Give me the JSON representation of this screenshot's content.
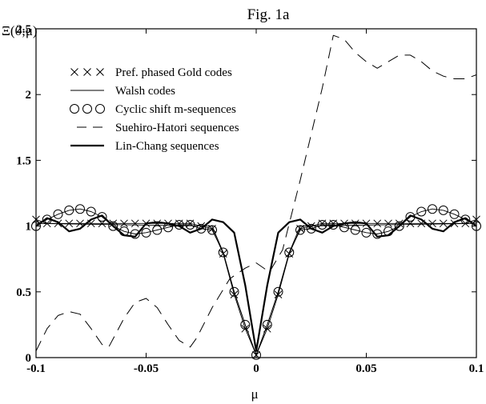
{
  "chart_data": {
    "type": "line",
    "title": "Fig. 1a",
    "xlabel": "μ",
    "ylabel": "Ξ(0;μ)",
    "xlim": [
      -0.1,
      0.1
    ],
    "ylim": [
      0,
      2.5
    ],
    "x_ticks": [
      -0.1,
      -0.05,
      0,
      0.05,
      0.1
    ],
    "x_tick_labels": [
      "-0.1",
      "-0.05",
      "0",
      "0.05",
      "0.1"
    ],
    "y_ticks": [
      0,
      0.5,
      1,
      1.5,
      2,
      2.5
    ],
    "y_tick_labels": [
      "0",
      "0.5",
      "1",
      "1.5",
      "2",
      "2.5"
    ],
    "grid": false,
    "legend_position": "top-left",
    "series": [
      {
        "name": "Pref. phased Gold codes",
        "style": "x-marker-thin-line",
        "x": [
          -0.1,
          -0.095,
          -0.09,
          -0.085,
          -0.08,
          -0.075,
          -0.07,
          -0.065,
          -0.06,
          -0.055,
          -0.05,
          -0.045,
          -0.04,
          -0.035,
          -0.03,
          -0.025,
          -0.02,
          -0.015,
          -0.01,
          -0.005,
          0,
          0.005,
          0.01,
          0.015,
          0.02,
          0.025,
          0.03,
          0.035,
          0.04,
          0.045,
          0.05,
          0.055,
          0.06,
          0.065,
          0.07,
          0.075,
          0.08,
          0.085,
          0.09,
          0.095,
          0.1
        ],
        "y": [
          1.05,
          1.02,
          1.02,
          1.02,
          1.02,
          1.02,
          1.02,
          1.02,
          1.02,
          1.02,
          1.02,
          1.02,
          1.02,
          1.02,
          1.02,
          1.0,
          0.98,
          0.79,
          0.48,
          0.22,
          0.02,
          0.22,
          0.48,
          0.79,
          0.98,
          1.0,
          1.02,
          1.02,
          1.02,
          1.02,
          1.02,
          1.02,
          1.02,
          1.02,
          1.02,
          1.02,
          1.02,
          1.02,
          1.02,
          1.02,
          1.05
        ]
      },
      {
        "name": "Walsh codes",
        "style": "thin-line",
        "x": [
          -0.1,
          -0.02,
          -0.015,
          -0.01,
          -0.005,
          0,
          0.005,
          0.01,
          0.015,
          0.02,
          0.1
        ],
        "y": [
          1.02,
          1.0,
          0.8,
          0.5,
          0.25,
          0.02,
          0.25,
          0.5,
          0.8,
          1.0,
          1.02
        ]
      },
      {
        "name": "Cyclic shift m-sequences",
        "style": "circle-marker-thin-line",
        "x": [
          -0.1,
          -0.095,
          -0.09,
          -0.085,
          -0.08,
          -0.075,
          -0.07,
          -0.065,
          -0.06,
          -0.055,
          -0.05,
          -0.045,
          -0.04,
          -0.035,
          -0.03,
          -0.025,
          -0.02,
          -0.015,
          -0.01,
          -0.005,
          0,
          0.005,
          0.01,
          0.015,
          0.02,
          0.025,
          0.03,
          0.035,
          0.04,
          0.045,
          0.05,
          0.055,
          0.06,
          0.065,
          0.07,
          0.075,
          0.08,
          0.085,
          0.09,
          0.095,
          0.1
        ],
        "y": [
          1.0,
          1.05,
          1.09,
          1.12,
          1.13,
          1.11,
          1.07,
          1.0,
          0.96,
          0.94,
          0.95,
          0.97,
          0.99,
          1.01,
          1.01,
          0.98,
          0.97,
          0.8,
          0.5,
          0.25,
          0.02,
          0.25,
          0.5,
          0.8,
          0.97,
          0.98,
          1.01,
          1.01,
          0.99,
          0.97,
          0.95,
          0.94,
          0.96,
          1.0,
          1.07,
          1.11,
          1.13,
          1.12,
          1.09,
          1.05,
          1.0
        ]
      },
      {
        "name": "Suehiro-Hatori sequences",
        "style": "dashed",
        "x": [
          -0.1,
          -0.095,
          -0.09,
          -0.085,
          -0.08,
          -0.075,
          -0.07,
          -0.067,
          -0.06,
          -0.055,
          -0.05,
          -0.045,
          -0.04,
          -0.035,
          -0.03,
          -0.027,
          -0.02,
          -0.012,
          -0.005,
          0,
          0.006,
          0.012,
          0.02,
          0.03,
          0.035,
          0.04,
          0.045,
          0.05,
          0.055,
          0.06,
          0.065,
          0.07,
          0.075,
          0.08,
          0.085,
          0.09,
          0.095,
          0.1
        ],
        "y": [
          0.05,
          0.22,
          0.32,
          0.35,
          0.33,
          0.22,
          0.1,
          0.08,
          0.3,
          0.42,
          0.45,
          0.38,
          0.25,
          0.13,
          0.08,
          0.15,
          0.38,
          0.6,
          0.68,
          0.72,
          0.65,
          0.82,
          1.35,
          2.05,
          2.45,
          2.42,
          2.32,
          2.25,
          2.2,
          2.25,
          2.3,
          2.3,
          2.25,
          2.18,
          2.14,
          2.12,
          2.12,
          2.15
        ]
      },
      {
        "name": "Lin-Chang sequences",
        "style": "thick-line",
        "x": [
          -0.1,
          -0.095,
          -0.09,
          -0.085,
          -0.08,
          -0.075,
          -0.07,
          -0.065,
          -0.06,
          -0.055,
          -0.05,
          -0.045,
          -0.04,
          -0.035,
          -0.03,
          -0.025,
          -0.02,
          -0.015,
          -0.01,
          -0.005,
          0,
          0.005,
          0.01,
          0.015,
          0.02,
          0.025,
          0.03,
          0.035,
          0.04,
          0.045,
          0.05,
          0.055,
          0.06,
          0.065,
          0.07,
          0.075,
          0.08,
          0.085,
          0.09,
          0.095,
          0.1
        ],
        "y": [
          1.0,
          1.06,
          1.03,
          0.96,
          0.98,
          1.05,
          1.08,
          1.0,
          0.93,
          0.92,
          1.02,
          1.03,
          1.02,
          1.0,
          0.95,
          0.98,
          1.05,
          1.03,
          0.95,
          0.55,
          0.05,
          0.55,
          0.95,
          1.03,
          1.05,
          0.98,
          0.95,
          1.0,
          1.02,
          1.03,
          1.02,
          0.92,
          0.93,
          1.0,
          1.08,
          1.05,
          0.98,
          0.96,
          1.03,
          1.06,
          1.0
        ]
      }
    ]
  }
}
